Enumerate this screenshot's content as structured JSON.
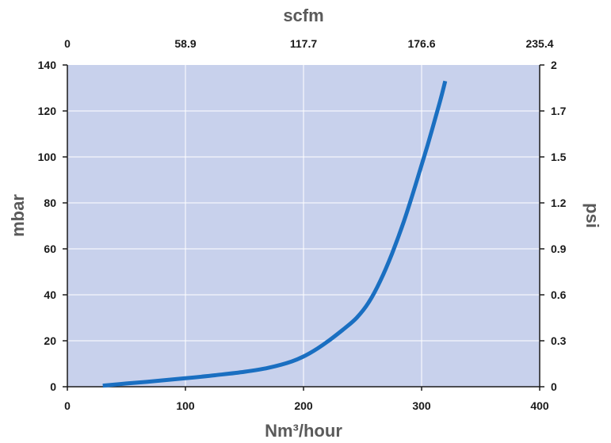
{
  "chart_data": {
    "type": "line",
    "title": "",
    "xlabel_bottom": "Nm³/hour",
    "xlabel_top": "scfm",
    "ylabel_left": "mbar",
    "ylabel_right": "psi",
    "xlim": [
      0,
      400
    ],
    "ylim": [
      0,
      140
    ],
    "x_ticks": [
      "0",
      "100",
      "200",
      "300",
      "400"
    ],
    "x_tick_values": [
      0,
      100,
      200,
      300,
      400
    ],
    "x2_ticks": [
      "0",
      "58.9",
      "117.7",
      "176.6",
      "235.4"
    ],
    "y_ticks": [
      "0",
      "20",
      "40",
      "60",
      "80",
      "100",
      "120",
      "140"
    ],
    "y_tick_values": [
      0,
      20,
      40,
      60,
      80,
      100,
      120,
      140
    ],
    "y2_ticks": [
      "0",
      "0.3",
      "0.6",
      "0.9",
      "1.2",
      "1.5",
      "1.7",
      "2"
    ],
    "grid": true,
    "plot_background": "#c8d1ec",
    "line_color": "#1a6fc1",
    "series": [
      {
        "x": [
          30,
          50,
          75,
          100,
          125,
          150,
          170,
          190,
          205,
          220,
          235,
          245,
          255,
          265,
          275,
          285,
          295,
          305,
          315,
          320
        ],
        "y": [
          0.5,
          1.4,
          2.5,
          3.7,
          5.0,
          6.5,
          8.2,
          11.0,
          14.5,
          19.5,
          25.5,
          30.0,
          36.5,
          46.0,
          58.0,
          72.0,
          88.0,
          105.0,
          123.0,
          133.0
        ]
      }
    ]
  }
}
